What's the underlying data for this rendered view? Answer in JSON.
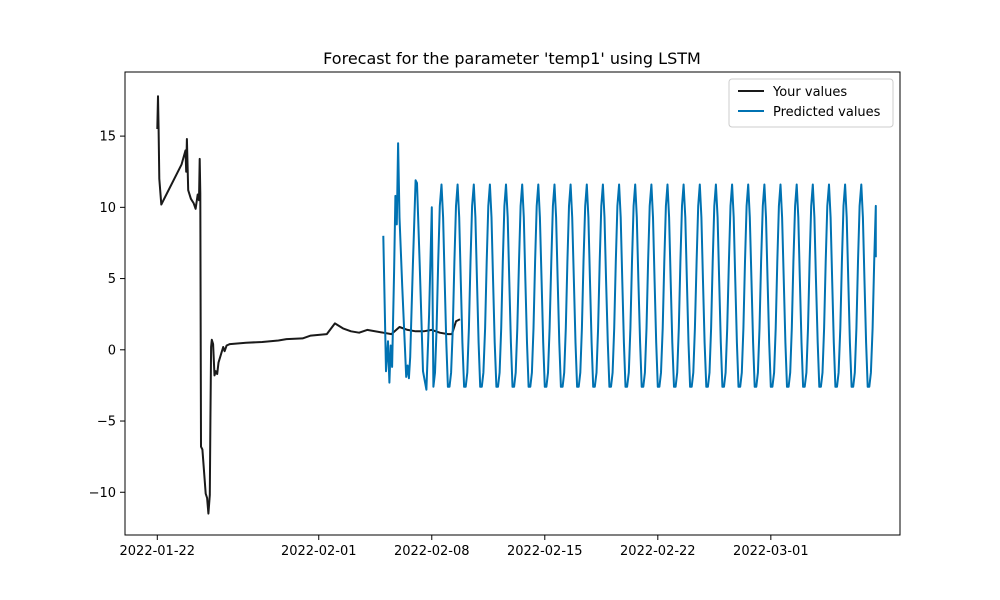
{
  "chart_data": {
    "type": "line",
    "title": "Forecast for the parameter 'temp1' using LSTM",
    "xlabel": "",
    "ylabel": "",
    "xlim": [
      "2022-01-20",
      "2022-03-09"
    ],
    "ylim": [
      -13,
      19.5
    ],
    "x_ticks": [
      "2022-01-22",
      "2022-02-01",
      "2022-02-08",
      "2022-02-15",
      "2022-02-22",
      "2022-03-01"
    ],
    "y_ticks": [
      15,
      10,
      5,
      0,
      -5,
      -10
    ],
    "y_tick_labels": [
      "15",
      "10",
      "5",
      "0",
      "−5",
      "−10"
    ],
    "grid": false,
    "legend_position": "top-right",
    "series": [
      {
        "name": "Your values",
        "color": "#1a1a1a",
        "points": [
          [
            "2022-01-22T00:00",
            15.5
          ],
          [
            "2022-01-22T01:00",
            17.8
          ],
          [
            "2022-01-22T02:00",
            15.5
          ],
          [
            "2022-01-22T03:00",
            12.0
          ],
          [
            "2022-01-22T06:00",
            10.2
          ],
          [
            "2022-01-23T12:00",
            13.0
          ],
          [
            "2022-01-23T18:00",
            14.0
          ],
          [
            "2022-01-23T19:00",
            12.5
          ],
          [
            "2022-01-23T20:00",
            14.8
          ],
          [
            "2022-01-23T22:00",
            11.2
          ],
          [
            "2022-01-24T02:00",
            10.6
          ],
          [
            "2022-01-24T06:00",
            10.3
          ],
          [
            "2022-01-24T09:00",
            9.9
          ],
          [
            "2022-01-24T12:00",
            10.9
          ],
          [
            "2022-01-24T14:00",
            10.5
          ],
          [
            "2022-01-24T15:00",
            13.4
          ],
          [
            "2022-01-24T16:00",
            11.0
          ],
          [
            "2022-01-24T17:00",
            -6.8
          ],
          [
            "2022-01-24T19:00",
            -7.0
          ],
          [
            "2022-01-25T00:00",
            -10.1
          ],
          [
            "2022-01-25T02:00",
            -10.4
          ],
          [
            "2022-01-25T04:00",
            -11.5
          ],
          [
            "2022-01-25T06:00",
            -10.2
          ],
          [
            "2022-01-25T07:00",
            -5.0
          ],
          [
            "2022-01-25T08:00",
            0.2
          ],
          [
            "2022-01-25T09:00",
            0.7
          ],
          [
            "2022-01-25T11:00",
            0.4
          ],
          [
            "2022-01-25T13:00",
            -1.8
          ],
          [
            "2022-01-25T15:00",
            -1.5
          ],
          [
            "2022-01-25T17:00",
            -1.7
          ],
          [
            "2022-01-25T19:00",
            -0.9
          ],
          [
            "2022-01-26T02:00",
            0.2
          ],
          [
            "2022-01-26T04:00",
            -0.1
          ],
          [
            "2022-01-26T07:00",
            0.3
          ],
          [
            "2022-01-26T12:00",
            0.4
          ],
          [
            "2022-01-27T12:00",
            0.5
          ],
          [
            "2022-01-28T12:00",
            0.55
          ],
          [
            "2022-01-29T12:00",
            0.65
          ],
          [
            "2022-01-30T00:00",
            0.75
          ],
          [
            "2022-01-31T00:00",
            0.8
          ],
          [
            "2022-01-31T12:00",
            1.0
          ],
          [
            "2022-02-01T12:00",
            1.1
          ],
          [
            "2022-02-02T00:00",
            1.85
          ],
          [
            "2022-02-02T12:00",
            1.5
          ],
          [
            "2022-02-03T00:00",
            1.3
          ],
          [
            "2022-02-03T12:00",
            1.2
          ],
          [
            "2022-02-04T00:00",
            1.4
          ],
          [
            "2022-02-05T00:00",
            1.2
          ],
          [
            "2022-02-05T12:00",
            1.1
          ],
          [
            "2022-02-06T00:00",
            1.6
          ],
          [
            "2022-02-06T12:00",
            1.4
          ],
          [
            "2022-02-07T00:00",
            1.3
          ],
          [
            "2022-02-07T12:00",
            1.3
          ],
          [
            "2022-02-08T00:00",
            1.4
          ],
          [
            "2022-02-08T12:00",
            1.2
          ],
          [
            "2022-02-09T00:00",
            1.1
          ],
          [
            "2022-02-09T06:00",
            1.1
          ],
          [
            "2022-02-09T12:00",
            2.0
          ],
          [
            "2022-02-09T18:00",
            2.15
          ]
        ]
      },
      {
        "name": "Predicted values",
        "color": "#0072b2",
        "points": [
          [
            "2022-02-05T00:00",
            8.0
          ],
          [
            "2022-02-05T04:00",
            -1.5
          ],
          [
            "2022-02-05T07:00",
            0.6
          ],
          [
            "2022-02-05T09:00",
            -2.3
          ],
          [
            "2022-02-05T11:00",
            0.3
          ],
          [
            "2022-02-05T13:00",
            -1.2
          ],
          [
            "2022-02-05T16:00",
            5.5
          ],
          [
            "2022-02-05T18:00",
            10.8
          ],
          [
            "2022-02-05T20:00",
            8.8
          ],
          [
            "2022-02-05T22:00",
            14.5
          ],
          [
            "2022-02-06T00:00",
            9.3
          ],
          [
            "2022-02-06T04:00",
            4.5
          ],
          [
            "2022-02-06T08:00",
            0.2
          ],
          [
            "2022-02-06T10:00",
            -1.9
          ],
          [
            "2022-02-06T12:00",
            -1.1
          ],
          [
            "2022-02-06T14:00",
            -2.0
          ],
          [
            "2022-02-06T16:00",
            -0.5
          ],
          [
            "2022-02-06T20:00",
            6.0
          ],
          [
            "2022-02-07T00:00",
            11.9
          ],
          [
            "2022-02-07T02:00",
            11.7
          ],
          [
            "2022-02-07T06:00",
            6.0
          ],
          [
            "2022-02-07T11:00",
            -1.5
          ],
          [
            "2022-02-07T16:00",
            -2.8
          ],
          [
            "2022-02-07T20:00",
            2.5
          ],
          [
            "2022-02-08T00:00",
            10.0
          ]
        ],
        "periodic_continuation": {
          "period_days": 1,
          "through": "2022-03-07T12:00",
          "daily_profile": [
            -2.6,
            -1.6,
            1.5,
            6.2,
            10.1,
            11.6,
            9.3,
            4.8,
            0.5,
            -2.6
          ],
          "final_value": 6.5
        }
      }
    ]
  }
}
